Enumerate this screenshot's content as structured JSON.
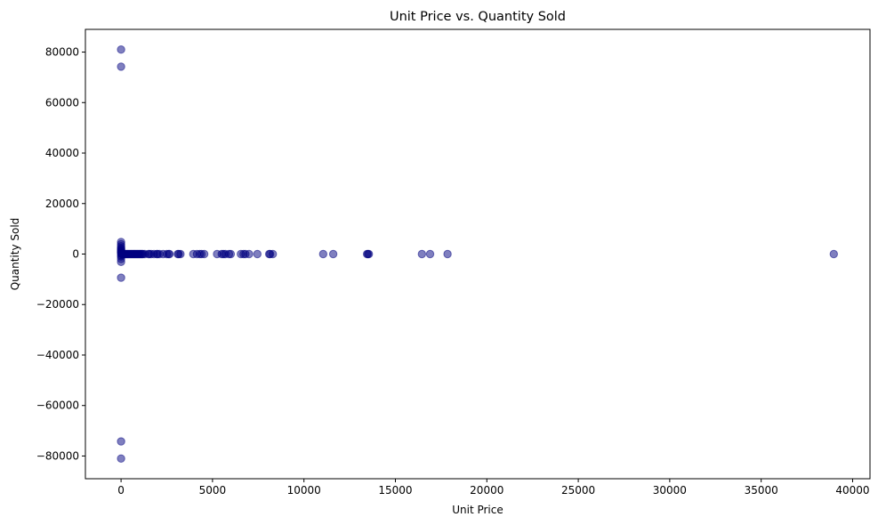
{
  "chart_data": {
    "type": "scatter",
    "title": "Unit Price vs. Quantity Sold",
    "xlabel": "Unit Price",
    "ylabel": "Quantity Sold",
    "xlim": [
      -1950,
      40950
    ],
    "ylim": [
      -89000,
      89000
    ],
    "xticks": [
      0,
      5000,
      10000,
      15000,
      20000,
      25000,
      30000,
      35000,
      40000
    ],
    "xtick_labels": [
      "0",
      "5000",
      "10000",
      "15000",
      "20000",
      "25000",
      "30000",
      "35000",
      "40000"
    ],
    "yticks": [
      -80000,
      -60000,
      -40000,
      -20000,
      0,
      20000,
      40000,
      60000,
      80000
    ],
    "ytick_labels": [
      "−80000",
      "−60000",
      "−40000",
      "−20000",
      "0",
      "20000",
      "40000",
      "60000",
      "80000"
    ],
    "grid": false,
    "point_color": "#000080",
    "point_alpha": 0.5,
    "points": [
      {
        "x": 2,
        "y": 80995
      },
      {
        "x": 1,
        "y": 74215
      },
      {
        "x": 2,
        "y": -80995
      },
      {
        "x": 1,
        "y": -74215
      },
      {
        "x": 0,
        "y": -9360
      },
      {
        "x": 1,
        "y": -3114
      },
      {
        "x": 2,
        "y": -1930
      },
      {
        "x": 1,
        "y": -1000
      },
      {
        "x": 3,
        "y": -500
      },
      {
        "x": 1,
        "y": 4800
      },
      {
        "x": 2,
        "y": 3906
      },
      {
        "x": 1,
        "y": 3114
      },
      {
        "x": 2,
        "y": 2400
      },
      {
        "x": 0,
        "y": 2000
      },
      {
        "x": 1,
        "y": 1600
      },
      {
        "x": 3,
        "y": 1200
      },
      {
        "x": 2,
        "y": 960
      },
      {
        "x": 1,
        "y": 600
      },
      {
        "x": 5,
        "y": 300
      },
      {
        "x": 10,
        "y": 100
      },
      {
        "x": 30,
        "y": 50
      },
      {
        "x": 60,
        "y": 0
      },
      {
        "x": 100,
        "y": 0
      },
      {
        "x": 150,
        "y": 0
      },
      {
        "x": 200,
        "y": 0
      },
      {
        "x": 250,
        "y": 0
      },
      {
        "x": 300,
        "y": 0
      },
      {
        "x": 350,
        "y": 0
      },
      {
        "x": 400,
        "y": 0
      },
      {
        "x": 450,
        "y": 0
      },
      {
        "x": 500,
        "y": 0
      },
      {
        "x": 550,
        "y": 0
      },
      {
        "x": 600,
        "y": 0
      },
      {
        "x": 650,
        "y": 0
      },
      {
        "x": 700,
        "y": 0
      },
      {
        "x": 750,
        "y": 0
      },
      {
        "x": 800,
        "y": 0
      },
      {
        "x": 850,
        "y": 0
      },
      {
        "x": 900,
        "y": 0
      },
      {
        "x": 950,
        "y": 0
      },
      {
        "x": 1000,
        "y": 0
      },
      {
        "x": 1050,
        "y": 0
      },
      {
        "x": 1100,
        "y": 0
      },
      {
        "x": 1150,
        "y": 0
      },
      {
        "x": 1200,
        "y": 0
      },
      {
        "x": 1300,
        "y": 0
      },
      {
        "x": 1500,
        "y": 0
      },
      {
        "x": 1550,
        "y": 0
      },
      {
        "x": 1650,
        "y": 0
      },
      {
        "x": 1800,
        "y": 0
      },
      {
        "x": 1950,
        "y": 0
      },
      {
        "x": 2000,
        "y": 0
      },
      {
        "x": 2100,
        "y": 0
      },
      {
        "x": 2300,
        "y": 0
      },
      {
        "x": 2500,
        "y": 0
      },
      {
        "x": 2600,
        "y": 0
      },
      {
        "x": 2650,
        "y": 0
      },
      {
        "x": 3100,
        "y": 0
      },
      {
        "x": 3150,
        "y": 0
      },
      {
        "x": 3250,
        "y": 0
      },
      {
        "x": 3950,
        "y": 0
      },
      {
        "x": 4150,
        "y": 0
      },
      {
        "x": 4300,
        "y": 0
      },
      {
        "x": 4400,
        "y": 0
      },
      {
        "x": 4550,
        "y": 0
      },
      {
        "x": 5250,
        "y": 0
      },
      {
        "x": 5500,
        "y": 0
      },
      {
        "x": 5600,
        "y": 0
      },
      {
        "x": 5700,
        "y": 0
      },
      {
        "x": 5900,
        "y": 0
      },
      {
        "x": 6000,
        "y": 0
      },
      {
        "x": 6550,
        "y": 0
      },
      {
        "x": 6700,
        "y": 0
      },
      {
        "x": 6800,
        "y": 0
      },
      {
        "x": 7000,
        "y": 0
      },
      {
        "x": 7450,
        "y": 0
      },
      {
        "x": 8100,
        "y": 0
      },
      {
        "x": 8150,
        "y": 0
      },
      {
        "x": 8300,
        "y": 0
      },
      {
        "x": 11050,
        "y": 0
      },
      {
        "x": 11600,
        "y": 0
      },
      {
        "x": 13450,
        "y": 0
      },
      {
        "x": 13500,
        "y": 0
      },
      {
        "x": 13550,
        "y": 0
      },
      {
        "x": 16450,
        "y": 0
      },
      {
        "x": 16900,
        "y": 0
      },
      {
        "x": 17850,
        "y": 0
      },
      {
        "x": 38970,
        "y": 0
      }
    ]
  }
}
